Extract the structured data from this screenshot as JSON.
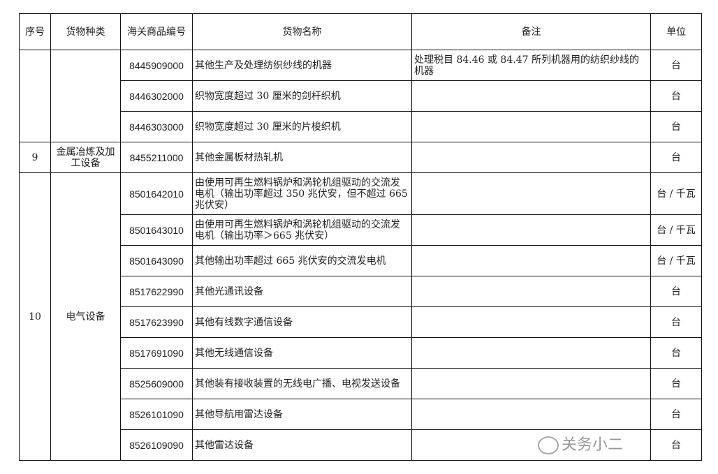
{
  "headers": [
    "序号",
    "货物种类",
    "海关商品编号",
    "货物名称",
    "备注",
    "单位"
  ],
  "groups": [
    {
      "no": "",
      "category": "",
      "rows": [
        {
          "code": "8445909000",
          "name": "其他生产及处理纺织纱线的机器",
          "note": "处理税目 84.46 或 84.47 所列机器用的纺织纱线的机器",
          "unit": "台"
        },
        {
          "code": "8446302000",
          "name": "织物宽度超过 30 厘米的剑杆织机",
          "note": "",
          "unit": "台"
        },
        {
          "code": "8446303000",
          "name": "织物宽度超过 30 厘米的片梭织机",
          "note": "",
          "unit": "台"
        }
      ]
    },
    {
      "no": "9",
      "category": "金属冶炼及加工设备",
      "rows": [
        {
          "code": "8455211000",
          "name": "其他金属板材热轧机",
          "note": "",
          "unit": "台"
        }
      ]
    },
    {
      "no": "10",
      "category": "电气设备",
      "rows": [
        {
          "code": "8501642010",
          "name": "由使用可再生燃料锅炉和涡轮机组驱动的交流发电机（输出功率超过 350 兆伏安，但不超过 665 兆伏安）",
          "note": "",
          "unit": "台 / 千瓦"
        },
        {
          "code": "8501643010",
          "name": "由使用可再生燃料锅炉和涡轮机组驱动的交流发电机（输出功率＞665 兆伏安）",
          "note": "",
          "unit": "台 / 千瓦"
        },
        {
          "code": "8501643090",
          "name": "其他输出功率超过 665 兆伏安的交流发电机",
          "note": "",
          "unit": "台 / 千瓦"
        },
        {
          "code": "8517622990",
          "name": "其他光通讯设备",
          "note": "",
          "unit": "台"
        },
        {
          "code": "8517623990",
          "name": "其他有线数字通信设备",
          "note": "",
          "unit": "台"
        },
        {
          "code": "8517691090",
          "name": "其他无线通信设备",
          "note": "",
          "unit": "台"
        },
        {
          "code": "8525609000",
          "name": "其他装有接收装置的无线电广播、电视发送设备",
          "note": "",
          "unit": "台"
        },
        {
          "code": "8526101090",
          "name": "其他导航用雷达设备",
          "note": "",
          "unit": "台"
        },
        {
          "code": "8526109090",
          "name": "其他雷达设备",
          "note": "",
          "unit": "台"
        }
      ]
    }
  ],
  "watermark": "关务小二"
}
